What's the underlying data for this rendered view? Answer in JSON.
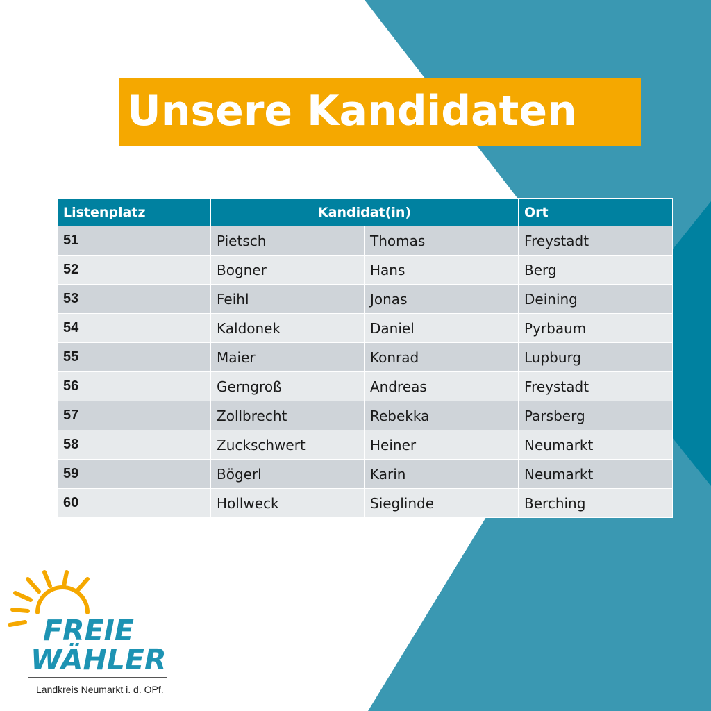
{
  "title": "Unsere Kandidaten",
  "colors": {
    "banner": "#f5a800",
    "header": "#0081a0",
    "teal_light": "#3a98b2",
    "teal_dark": "#0081a0",
    "row_odd": "#cfd4d9",
    "row_even": "#e7eaec",
    "logo_text": "#1d93b3",
    "sun": "#f5a800"
  },
  "table": {
    "headers": [
      "Listenplatz",
      "Kandidat(in)",
      "Ort"
    ],
    "rows": [
      {
        "nr": "51",
        "nachname": "Pietsch",
        "vorname": "Thomas",
        "ort": "Freystadt"
      },
      {
        "nr": "52",
        "nachname": "Bogner",
        "vorname": "Hans",
        "ort": "Berg"
      },
      {
        "nr": "53",
        "nachname": "Feihl",
        "vorname": "Jonas",
        "ort": "Deining"
      },
      {
        "nr": "54",
        "nachname": "Kaldonek",
        "vorname": "Daniel",
        "ort": "Pyrbaum"
      },
      {
        "nr": "55",
        "nachname": "Maier",
        "vorname": "Konrad",
        "ort": "Lupburg"
      },
      {
        "nr": "56",
        "nachname": "Gerngroß",
        "vorname": "Andreas",
        "ort": "Freystadt"
      },
      {
        "nr": "57",
        "nachname": "Zollbrecht",
        "vorname": "Rebekka",
        "ort": "Parsberg"
      },
      {
        "nr": "58",
        "nachname": "Zuckschwert",
        "vorname": "Heiner",
        "ort": "Neumarkt"
      },
      {
        "nr": "59",
        "nachname": "Bögerl",
        "vorname": "Karin",
        "ort": "Neumarkt"
      },
      {
        "nr": "60",
        "nachname": "Hollweck",
        "vorname": "Sieglinde",
        "ort": "Berching"
      }
    ]
  },
  "logo": {
    "line1": "FREIE",
    "line2": "WÄHLER",
    "subtitle": "Landkreis Neumarkt i. d. OPf."
  }
}
